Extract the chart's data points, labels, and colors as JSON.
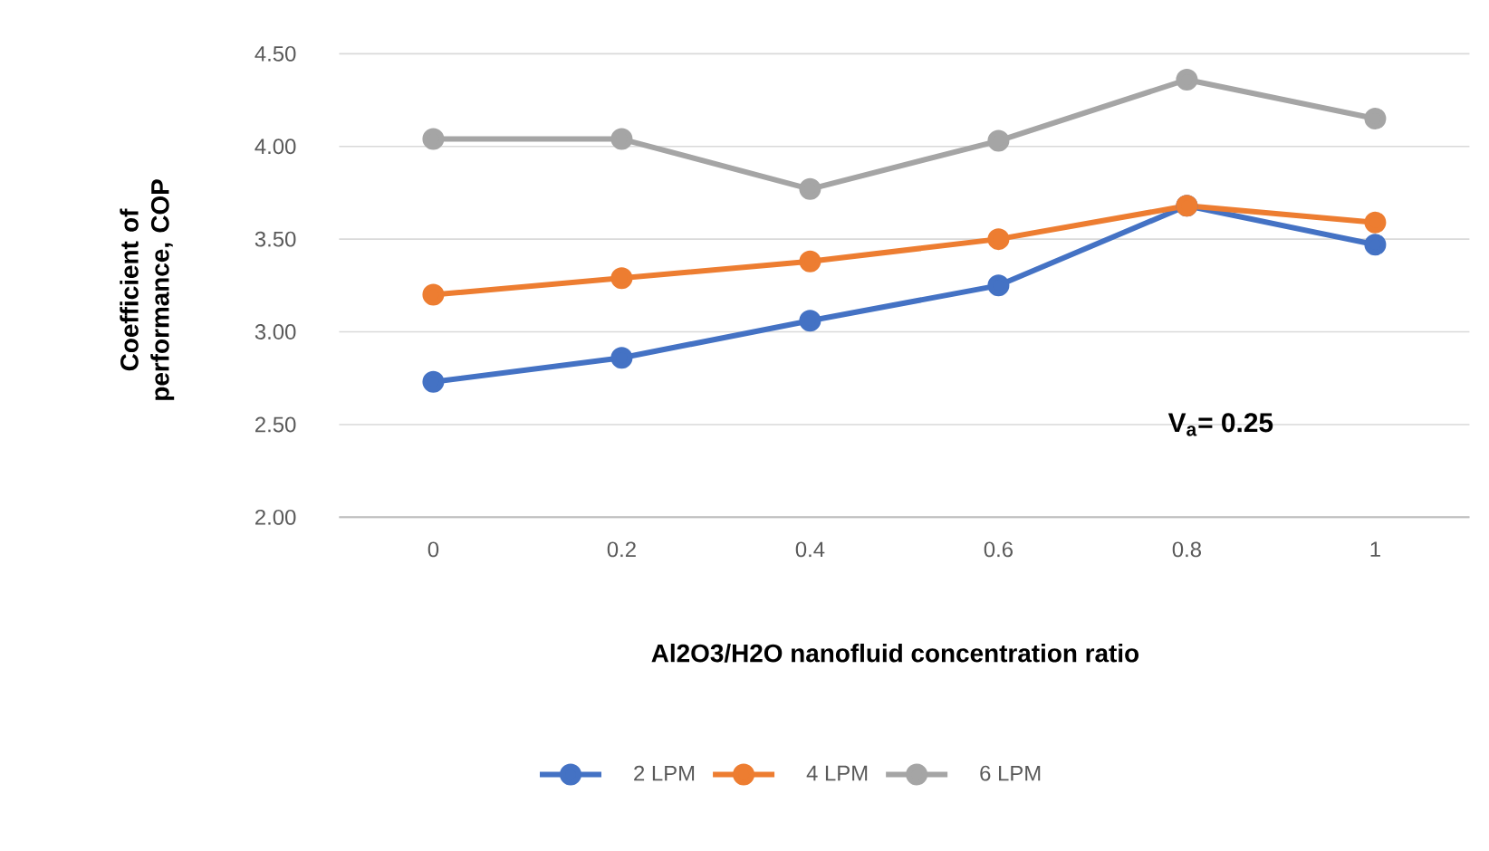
{
  "chart_data": {
    "type": "line",
    "xlabel": "Al2O3/H2O nanofluid concentration ratio",
    "ylabel": "Coefficient of performance, COP",
    "categories": [
      "0",
      "0.2",
      "0.4",
      "0.6",
      "0.8",
      "1"
    ],
    "series": [
      {
        "name": "2 LPM",
        "color": "#4472c4",
        "values": [
          2.73,
          2.86,
          3.06,
          3.25,
          3.68,
          3.47
        ]
      },
      {
        "name": "4 LPM",
        "color": "#ed7d31",
        "values": [
          3.2,
          3.29,
          3.38,
          3.5,
          3.68,
          3.59
        ]
      },
      {
        "name": "6 LPM",
        "color": "#a5a5a5",
        "values": [
          4.04,
          4.04,
          3.77,
          4.03,
          4.36,
          4.15
        ]
      }
    ],
    "ylim": [
      2.0,
      4.5
    ],
    "yticks": [
      {
        "value": 2.0,
        "label": "2.00"
      },
      {
        "value": 2.5,
        "label": "2.50"
      },
      {
        "value": 3.0,
        "label": "3.00"
      },
      {
        "value": 3.5,
        "label": "3.50"
      },
      {
        "value": 4.0,
        "label": "4.00"
      },
      {
        "value": 4.5,
        "label": "4.50"
      }
    ],
    "annotations": [
      "V$_{a}$= 0.25"
    ],
    "grid": "y",
    "legend": "bottom",
    "marker": "circle",
    "line_style": "solid"
  }
}
